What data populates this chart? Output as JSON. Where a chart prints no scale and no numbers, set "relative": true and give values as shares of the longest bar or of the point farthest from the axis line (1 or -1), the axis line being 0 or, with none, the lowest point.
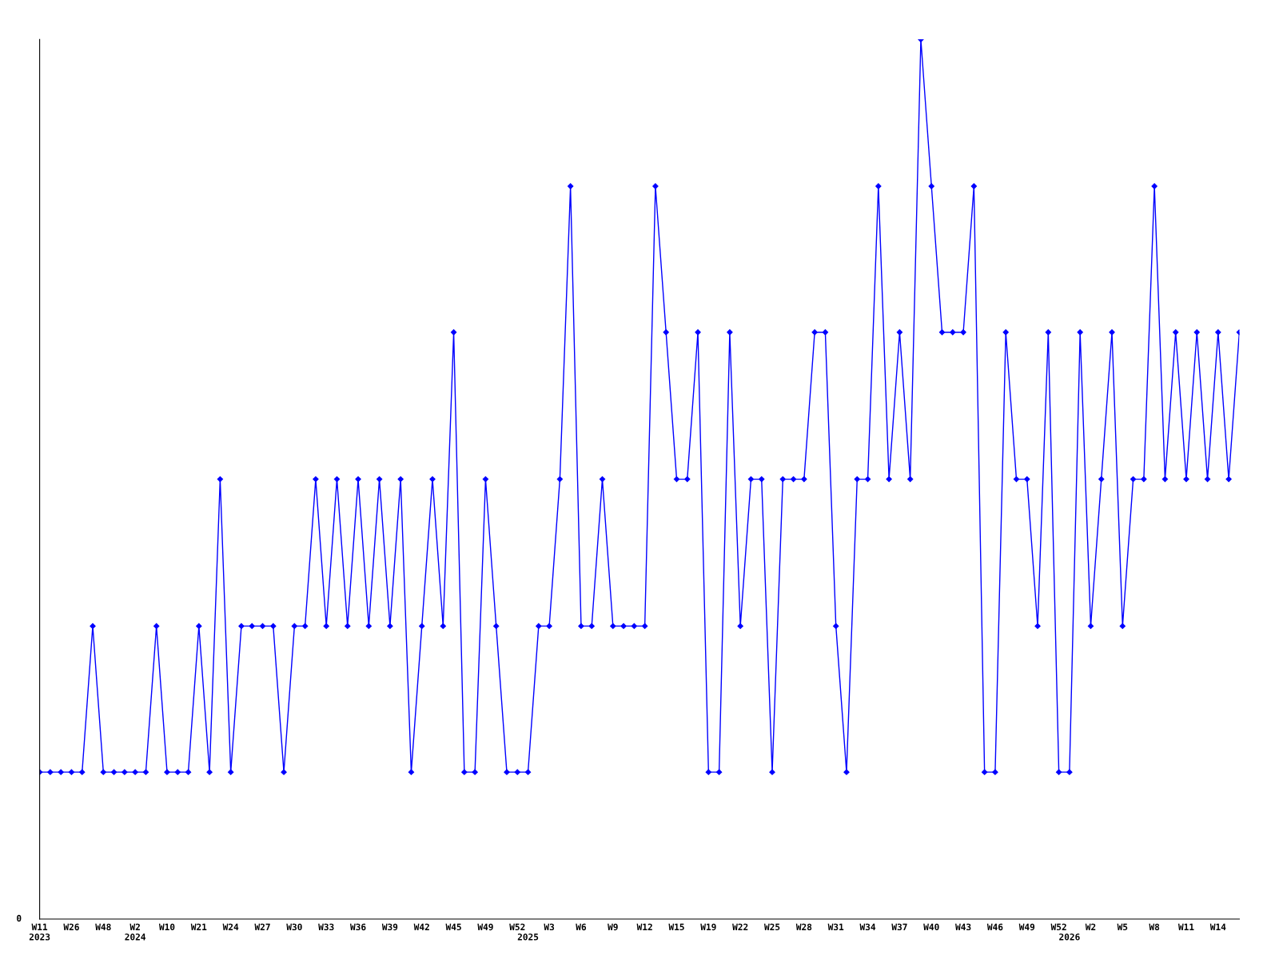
{
  "chart_data": {
    "type": "line",
    "relative": true,
    "marker": "diamond",
    "line_style": "solid",
    "categories": [
      "W11\n2023",
      null,
      null,
      "W26",
      null,
      null,
      "W48",
      null,
      null,
      "W2\n2024",
      null,
      null,
      "W10",
      null,
      null,
      "W21",
      null,
      null,
      "W24",
      null,
      null,
      "W27",
      null,
      null,
      "W30",
      null,
      null,
      "W33",
      null,
      null,
      "W36",
      null,
      null,
      "W39",
      null,
      null,
      "W42",
      null,
      null,
      "W45",
      null,
      null,
      "W49",
      null,
      null,
      "W52",
      "\n2025",
      null,
      "W3",
      null,
      null,
      "W6",
      null,
      null,
      "W9",
      null,
      null,
      "W12",
      null,
      null,
      "W15",
      null,
      null,
      "W19",
      null,
      null,
      "W22",
      null,
      null,
      "W25",
      null,
      null,
      "W28",
      null,
      null,
      "W31",
      null,
      null,
      "W34",
      null,
      null,
      "W37",
      null,
      null,
      "W40",
      null,
      null,
      "W43",
      null,
      null,
      "W46",
      null,
      null,
      "W49",
      null,
      null,
      "W52",
      "\n2026",
      null,
      "W2",
      null,
      null,
      "W5",
      null,
      null,
      "W8",
      null,
      null,
      "W11",
      null,
      null,
      "W14",
      null,
      null
    ],
    "series": [
      {
        "color": "#0000ff",
        "values": [
          0.167,
          0.167,
          0.167,
          0.167,
          0.167,
          0.333,
          0.167,
          0.167,
          0.167,
          0.167,
          0.167,
          0.333,
          0.167,
          0.167,
          0.167,
          0.333,
          0.167,
          0.5,
          0.167,
          0.333,
          0.333,
          0.333,
          0.333,
          0.167,
          0.333,
          0.333,
          0.5,
          0.333,
          0.5,
          0.333,
          0.5,
          0.333,
          0.5,
          0.333,
          0.5,
          0.167,
          0.333,
          0.5,
          0.333,
          0.667,
          0.167,
          0.167,
          0.5,
          0.333,
          0.167,
          0.167,
          0.167,
          0.333,
          0.333,
          0.5,
          0.833,
          0.333,
          0.333,
          0.5,
          0.333,
          0.333,
          0.333,
          0.333,
          0.833,
          0.667,
          0.5,
          0.5,
          0.667,
          0.167,
          0.167,
          0.667,
          0.333,
          0.5,
          0.5,
          0.167,
          0.5,
          0.5,
          0.5,
          0.667,
          0.667,
          0.333,
          0.167,
          0.5,
          0.5,
          0.833,
          0.5,
          0.667,
          0.5,
          1,
          0.833,
          0.667,
          0.667,
          0.667,
          0.833,
          0.167,
          0.167,
          0.667,
          0.5,
          0.5,
          0.333,
          0.667,
          0.167,
          0.167,
          0.667,
          0.333,
          0.5,
          0.667,
          0.333,
          0.5,
          0.5,
          0.833,
          0.5,
          0.667,
          0.5,
          0.667,
          0.5,
          0.667,
          0.5,
          0.667
        ]
      }
    ],
    "annotations": [
      "0"
    ]
  }
}
